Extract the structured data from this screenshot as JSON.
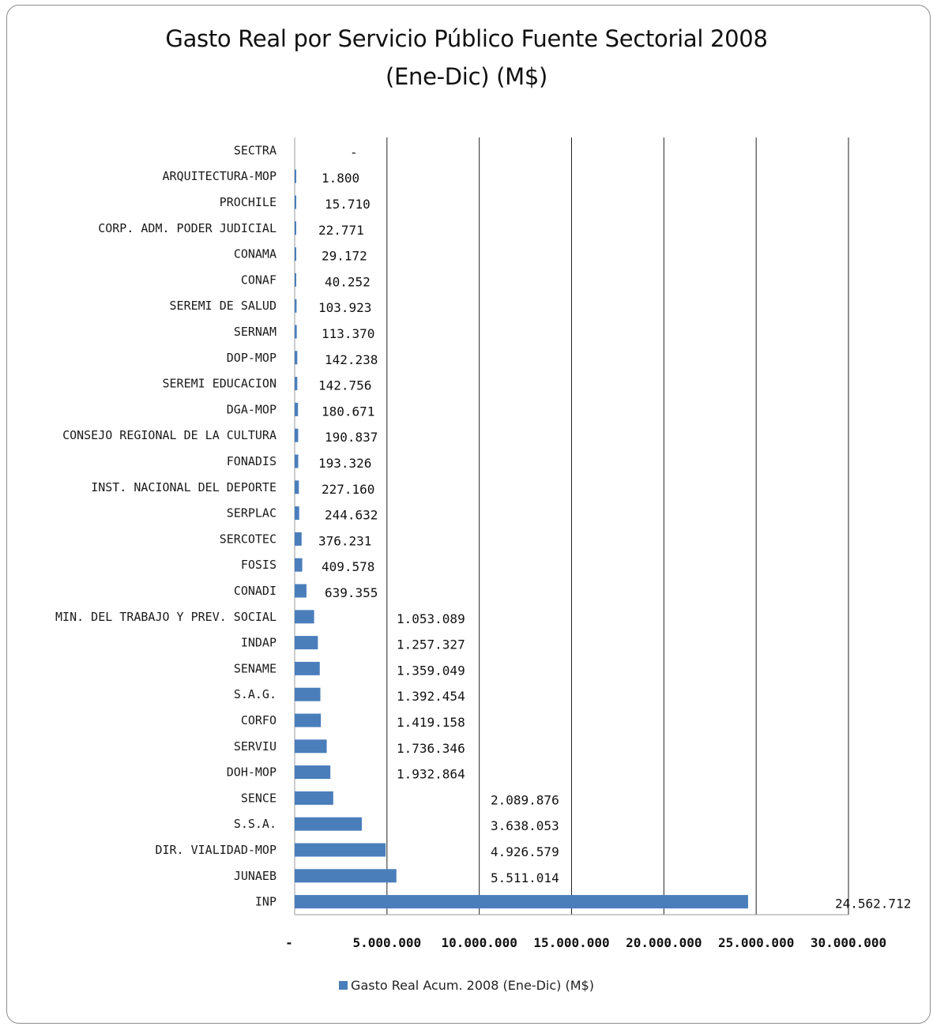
{
  "chart_data": {
    "type": "bar",
    "orientation": "horizontal",
    "title": "Gasto Real por Servicio Público Fuente Sectorial 2008",
    "subtitle": "(Ene-Dic)   (M$)",
    "categories": [
      "SECTRA",
      "ARQUITECTURA-MOP",
      "PROCHILE",
      "CORP. ADM. PODER JUDICIAL",
      "CONAMA",
      "CONAF",
      "SEREMI DE SALUD",
      "SERNAM",
      "DOP-MOP",
      "SEREMI EDUCACION",
      "DGA-MOP",
      "CONSEJO REGIONAL DE LA CULTURA",
      "FONADIS",
      "INST. NACIONAL DEL DEPORTE",
      "SERPLAC",
      "SERCOTEC",
      "FOSIS",
      "CONADI",
      "MIN. DEL TRABAJO Y PREV. SOCIAL",
      "INDAP",
      "SENAME",
      "S.A.G.",
      "CORFO",
      "SERVIU",
      "DOH-MOP",
      "SENCE",
      "S.S.A.",
      "DIR. VIALIDAD-MOP",
      "JUNAEB",
      "INP"
    ],
    "values": [
      0,
      1800,
      15710,
      22771,
      29172,
      40252,
      103923,
      113370,
      142238,
      142756,
      180671,
      190837,
      193326,
      227160,
      244632,
      376231,
      409578,
      639355,
      1053089,
      1257327,
      1359049,
      1392454,
      1419158,
      1736346,
      1932864,
      2089876,
      3638053,
      4926579,
      5511014,
      24562712
    ],
    "data_labels": [
      "-",
      "1.800",
      "15.710",
      "22.771",
      "29.172",
      "40.252",
      "103.923",
      "113.370",
      "142.238",
      "142.756",
      "180.671",
      "190.837",
      "193.326",
      "227.160",
      "244.632",
      "376.231",
      "409.578",
      "639.355",
      "1.053.089",
      "1.257.327",
      "1.359.049",
      "1.392.454",
      "1.419.158",
      "1.736.346",
      "1.932.864",
      "2.089.876",
      "3.638.053",
      "4.926.579",
      "5.511.014",
      "24.562.712"
    ],
    "x_ticks": [
      0,
      5000000,
      10000000,
      15000000,
      20000000,
      25000000,
      30000000
    ],
    "x_tick_labels": [
      "-",
      "5.000.000",
      "10.000.000",
      "15.000.000",
      "20.000.000",
      "25.000.000",
      "30.000.000"
    ],
    "xlim": [
      0,
      30000000
    ],
    "grid": "vertical",
    "legend_position": "bottom",
    "series": [
      {
        "name": "Gasto Real Acum. 2008 (Ene-Dic)  (M$)",
        "color": "#4a7ebb"
      }
    ]
  }
}
